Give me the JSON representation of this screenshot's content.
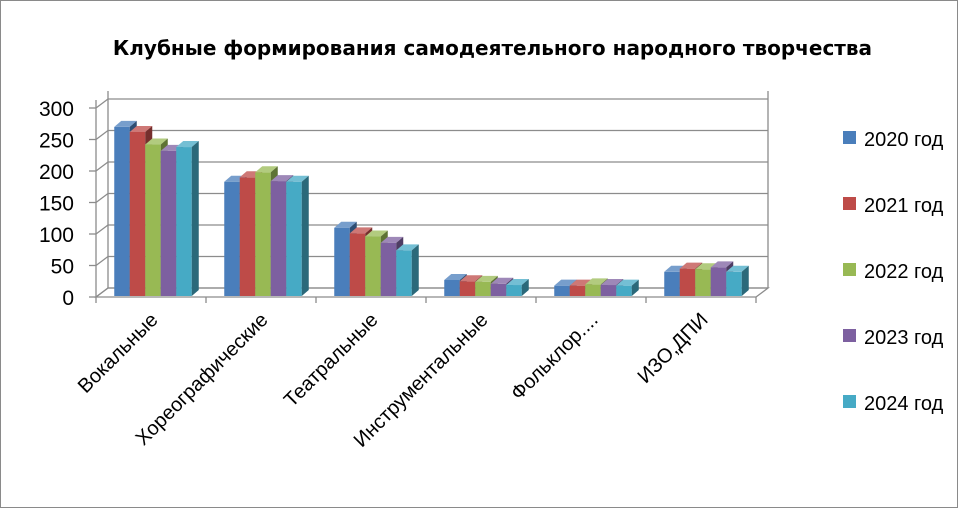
{
  "chart_data": {
    "type": "bar",
    "title": "Клубные формирования самодеятельного народного творчества",
    "categories": [
      "Вокальные",
      "Хореографические",
      "Театральные",
      "Инструментальные",
      "Фольклор....",
      "ИЗО,ДПИ"
    ],
    "series": [
      {
        "name": "2020 год",
        "color": "#4a7ebb",
        "values": [
          270,
          183,
          110,
          27,
          18,
          40
        ]
      },
      {
        "name": "2021 год",
        "color": "#be4b48",
        "values": [
          262,
          190,
          101,
          25,
          18,
          45
        ]
      },
      {
        "name": "2022 год",
        "color": "#98b954",
        "values": [
          242,
          198,
          96,
          24,
          20,
          44
        ]
      },
      {
        "name": "2023 год",
        "color": "#7d60a0",
        "values": [
          232,
          184,
          86,
          21,
          19,
          47
        ]
      },
      {
        "name": "2024 год",
        "color": "#46aac5",
        "values": [
          238,
          183,
          74,
          19,
          18,
          40
        ]
      }
    ],
    "yticks": [
      "0",
      "50",
      "100",
      "150",
      "200",
      "250",
      "300"
    ],
    "ylim": [
      0,
      300
    ],
    "grid": true,
    "legend_position": "right"
  }
}
